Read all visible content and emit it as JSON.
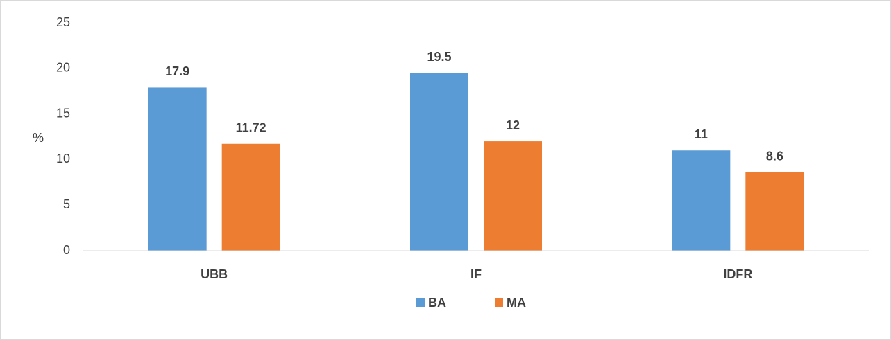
{
  "chart_data": {
    "type": "bar",
    "y_label": "%",
    "categories": [
      "UBB",
      "IF",
      "IDFR"
    ],
    "series": [
      {
        "name": "BA",
        "color": "#5b9bd5",
        "values": [
          17.9,
          19.5,
          11
        ]
      },
      {
        "name": "MA",
        "color": "#ed7d31",
        "values": [
          11.72,
          12,
          8.6
        ]
      }
    ],
    "ylim": [
      0,
      25
    ],
    "yticks": [
      0,
      5,
      10,
      15,
      20,
      25
    ],
    "grid": false,
    "legend": "bottom"
  }
}
